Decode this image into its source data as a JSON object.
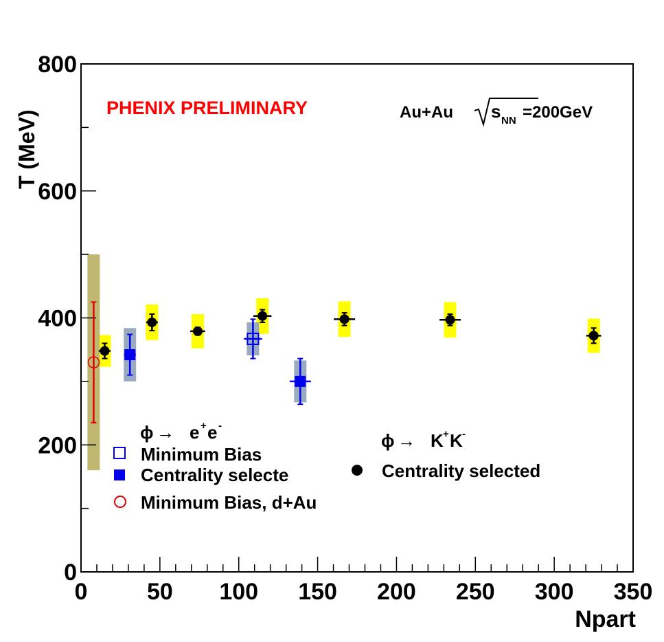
{
  "chart_data": {
    "type": "scatter",
    "title": "",
    "xlabel": "Npart",
    "ylabel": "T (MeV)",
    "xlim": [
      0,
      350
    ],
    "ylim": [
      0,
      800
    ],
    "x_ticks": [
      0,
      50,
      100,
      150,
      200,
      250,
      300,
      350
    ],
    "y_ticks": [
      0,
      200,
      400,
      600,
      800
    ],
    "annotations": {
      "preliminary": "PHENIX PRELIMINARY",
      "system_prefix": "Au+Au",
      "sqrt_s": "s",
      "sqrt_sub": "NN",
      "energy": "=200GeV"
    },
    "colors": {
      "preliminary": "#ff0000",
      "kk_syst": "#ffff00",
      "ee_syst": "#9aaac0",
      "dau_syst": "#c0b870",
      "ee_marker": "#0000ee",
      "dau_marker": "#dd0000",
      "kk_marker": "#000000"
    },
    "legend_ee": {
      "header_phi": "ϕ",
      "header_arrow": "→",
      "header_products": "e",
      "header_sup1": "+",
      "header_sub2": "e",
      "header_sup2": "-",
      "items": [
        "Minimum Bias",
        "Centrality selecte",
        "Minimum Bias, d+Au"
      ]
    },
    "legend_kk": {
      "header_phi": "ϕ",
      "header_arrow": "→",
      "header_k1": "K",
      "header_sup1": "+",
      "header_k2": "K",
      "header_sup2": "-",
      "items": [
        "Centrality selected"
      ]
    },
    "series": [
      {
        "name": "phi -> K+K- Centrality selected",
        "marker": "filled-circle",
        "points": [
          {
            "x": 15,
            "y": 348,
            "ey": 12,
            "ex": 2,
            "syst": 25
          },
          {
            "x": 45,
            "y": 393,
            "ey": 13,
            "ex": 2,
            "syst": 28
          },
          {
            "x": 74,
            "y": 379,
            "ey": 6,
            "ex": 3,
            "syst": 27
          },
          {
            "x": 115,
            "y": 403,
            "ey": 10,
            "ex": 4,
            "syst": 28
          },
          {
            "x": 167,
            "y": 398,
            "ey": 10,
            "ex": 5,
            "syst": 28
          },
          {
            "x": 234,
            "y": 397,
            "ey": 9,
            "ex": 5,
            "syst": 28
          },
          {
            "x": 325,
            "y": 372,
            "ey": 12,
            "ex": 3,
            "syst": 27
          }
        ]
      },
      {
        "name": "phi -> e+e- Minimum Bias",
        "marker": "open-square",
        "points": [
          {
            "x": 109,
            "y": 367,
            "ey": 31,
            "ex": 4,
            "syst": 26
          }
        ]
      },
      {
        "name": "phi -> e+e- Centrality selected",
        "marker": "filled-square",
        "points": [
          {
            "x": 31,
            "y": 342,
            "ey": 32,
            "ex": 2,
            "syst": 42
          },
          {
            "x": 139,
            "y": 300,
            "ey": 36,
            "ex": 5,
            "syst": 33
          }
        ]
      },
      {
        "name": "phi -> e+e- Minimum Bias, d+Au",
        "marker": "open-circle",
        "points": [
          {
            "x": 8,
            "y": 330,
            "ey": 95,
            "ex": 0,
            "syst": 170
          }
        ]
      }
    ]
  }
}
